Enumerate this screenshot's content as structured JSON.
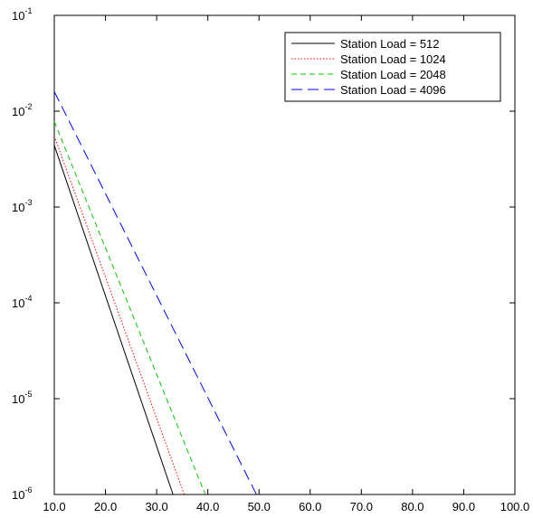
{
  "chart_data": {
    "type": "line",
    "title": "",
    "xlabel": "",
    "ylabel": "",
    "xlim": [
      10,
      100
    ],
    "ylim": [
      1e-06,
      0.1
    ],
    "y_scale": "log",
    "grid": false,
    "legend_position": "top-right",
    "x_ticks": [
      "10.0",
      "20.0",
      "30.0",
      "40.0",
      "50.0",
      "60.0",
      "70.0",
      "80.0",
      "90.0",
      "100.0"
    ],
    "y_ticks": [
      {
        "base": "10",
        "exp": "-1",
        "value": 0.1
      },
      {
        "base": "10",
        "exp": "-2",
        "value": 0.01
      },
      {
        "base": "10",
        "exp": "-3",
        "value": 0.001
      },
      {
        "base": "10",
        "exp": "-4",
        "value": 0.0001
      },
      {
        "base": "10",
        "exp": "-5",
        "value": 1e-05
      },
      {
        "base": "10",
        "exp": "-6",
        "value": 1e-06
      }
    ],
    "series": [
      {
        "name": "Station Load = 512",
        "color": "#000000",
        "dash": "",
        "x": [
          10,
          33.2
        ],
        "y": [
          0.0044,
          1e-06
        ]
      },
      {
        "name": "Station Load = 1024",
        "color": "#ff0000",
        "dash": "1.5,2",
        "x": [
          10,
          35.4
        ],
        "y": [
          0.0055,
          1e-06
        ]
      },
      {
        "name": "Station Load = 2048",
        "color": "#00cc00",
        "dash": "6,4",
        "x": [
          10,
          39.5
        ],
        "y": [
          0.0078,
          1e-06
        ]
      },
      {
        "name": "Station Load = 4096",
        "color": "#0000ff",
        "dash": "12,6",
        "x": [
          10,
          49.5
        ],
        "y": [
          0.016,
          1e-06
        ]
      }
    ]
  }
}
